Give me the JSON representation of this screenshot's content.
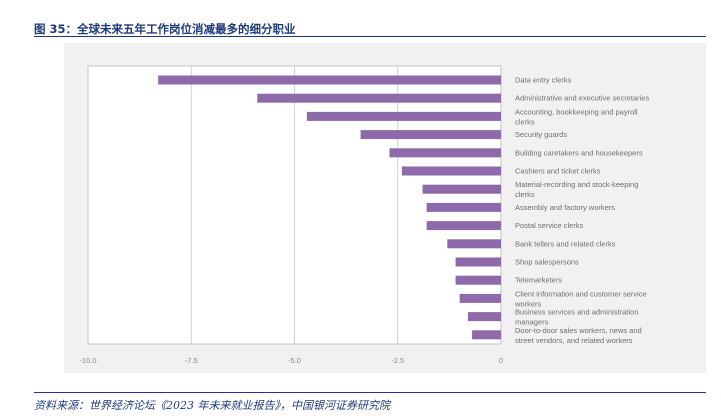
{
  "figure": {
    "title": "图 35：全球未来五年工作岗位消减最多的细分职业",
    "source": "资料来源：世界经济论坛《2023 年未来就业报告》，中国银河证券研究院"
  },
  "chart_data": {
    "type": "bar",
    "orientation": "horizontal",
    "title": "",
    "xlabel": "",
    "ylabel": "",
    "xlim": [
      -10.0,
      0
    ],
    "x_ticks": [
      "-10.0",
      "-7.5",
      "-5.0",
      "-2.5",
      "0"
    ],
    "grid": true,
    "bar_color": "#8e6aab",
    "categories": [
      "Data entry clerks",
      "Administrative and executive secretaries",
      "Accounting, bookkeeping and payroll clerks",
      "Security guards",
      "Building caretakers and housekeepers",
      "Cashiers and ticket clerks",
      "Material-recording and stock-keeping clerks",
      "Assembly and factory workers",
      "Postal service clerks",
      "Bank tellers and related clerks",
      "Shop salespersons",
      "Telemarketers",
      "Client information and customer service workers",
      "Business services and administration managers",
      "Door-to-door sales workers, news and street vendors, and related workers"
    ],
    "values": [
      -8.3,
      -5.9,
      -4.7,
      -3.4,
      -2.7,
      -2.4,
      -1.9,
      -1.8,
      -1.8,
      -1.3,
      -1.1,
      -1.1,
      -1.0,
      -0.8,
      -0.7
    ]
  }
}
